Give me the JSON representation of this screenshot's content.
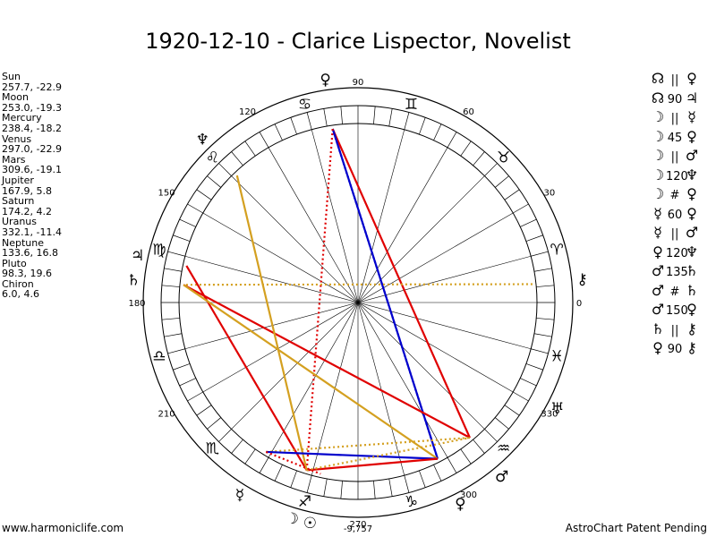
{
  "title": "1920-12-10 - Clarice Lispector, Novelist",
  "planets": [
    {
      "name": "Sun",
      "coords": "257.7, -22.9"
    },
    {
      "name": "Moon",
      "coords": "253.0, -19.3"
    },
    {
      "name": "Mercury",
      "coords": "238.4, -18.2"
    },
    {
      "name": "Venus",
      "coords": "297.0, -22.9"
    },
    {
      "name": "Mars",
      "coords": "309.6, -19.1"
    },
    {
      "name": "Jupiter",
      "coords": "167.9, 5.8"
    },
    {
      "name": "Saturn",
      "coords": "174.2, 4.2"
    },
    {
      "name": "Uranus",
      "coords": "332.1, -11.4"
    },
    {
      "name": "Neptune",
      "coords": "133.6, 16.8"
    },
    {
      "name": "Pluto",
      "coords": "98.3, 19.6"
    },
    {
      "name": "Chiron",
      "coords": "6.0, 4.6"
    }
  ],
  "aspects": [
    {
      "a": "☊",
      "sym": "||",
      "b": "♀"
    },
    {
      "a": "☊",
      "sym": "90",
      "b": "♃"
    },
    {
      "a": "☽",
      "sym": "||",
      "b": "☿"
    },
    {
      "a": "☽",
      "sym": "45",
      "b": "♀"
    },
    {
      "a": "☽",
      "sym": "||",
      "b": "♂"
    },
    {
      "a": "☽",
      "sym": "120",
      "b": "♆"
    },
    {
      "a": "☽",
      "sym": "#",
      "b": "♀"
    },
    {
      "a": "☿",
      "sym": "60",
      "b": "♀"
    },
    {
      "a": "☿",
      "sym": "||",
      "b": "♂"
    },
    {
      "a": "♀",
      "sym": "120",
      "b": "♆"
    },
    {
      "a": "♂",
      "sym": "135",
      "b": "♄"
    },
    {
      "a": "♂",
      "sym": "#",
      "b": "♄"
    },
    {
      "a": "♂",
      "sym": "150",
      "b": "♀"
    },
    {
      "a": "♄",
      "sym": "||",
      "b": "⚷"
    },
    {
      "a": "♀",
      "sym": "90",
      "b": "⚷"
    }
  ],
  "degree_labels": [
    "0",
    "30",
    "60",
    "90",
    "120",
    "150",
    "180",
    "210",
    "270",
    "300",
    "330"
  ],
  "bottom_value": "-9,757",
  "zodiac_signs": [
    "♈",
    "♉",
    "♊",
    "♋",
    "♌",
    "♍",
    "♎",
    "♏",
    "♐",
    "♑",
    "♒",
    "♓"
  ],
  "planet_glyphs": {
    "sun": "☉",
    "moon": "☽",
    "mercury": "☿",
    "venus": "♀",
    "mars": "♂",
    "jupiter": "♃",
    "saturn": "♄",
    "uranus": "♅",
    "neptune": "♆",
    "pluto": "♀",
    "chiron": "⚷"
  },
  "colors": {
    "red": "#e00000",
    "blue": "#0000cc",
    "gold": "#d4a020"
  },
  "footer_left": "www.harmoniclife.com",
  "footer_right": "AstroChart Patent Pending"
}
